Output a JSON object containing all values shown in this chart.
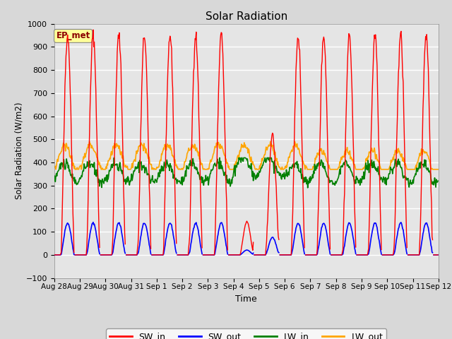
{
  "title": "Solar Radiation",
  "xlabel": "Time",
  "ylabel": "Solar Radiation (W/m2)",
  "ylim": [
    -100,
    1000
  ],
  "legend_labels": [
    "SW_in",
    "SW_out",
    "LW_in",
    "LW_out"
  ],
  "legend_colors": [
    "red",
    "blue",
    "green",
    "orange"
  ],
  "annotation_text": "EP_met",
  "annotation_color": "#8B0000",
  "annotation_bg": "#FFFF99",
  "background_color": "#DCDCDC",
  "plot_bg": "#E8E8E8",
  "grid_color": "white",
  "x_tick_labels": [
    "Aug 28",
    "Aug 29",
    "Aug 30",
    "Aug 31",
    "Sep 1",
    "Sep 2",
    "Sep 3",
    "Sep 4",
    "Sep 5",
    "Sep 6",
    "Sep 7",
    "Sep 8",
    "Sep 9",
    "Sep 10",
    "Sep 11",
    "Sep 12"
  ],
  "n_days": 15,
  "dt": 0.5
}
